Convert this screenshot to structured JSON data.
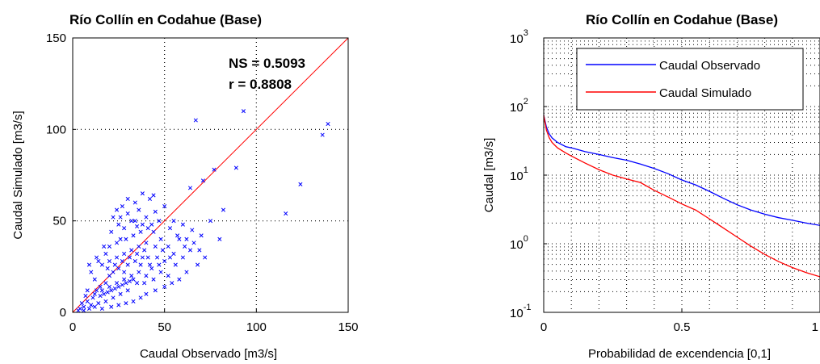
{
  "chart_data": [
    {
      "type": "scatter",
      "title": "Río Collín en Codahue (Base)",
      "xlabel": "Caudal Observado [m3/s]",
      "ylabel": "Caudal Simulado [m3/s]",
      "xlim": [
        0,
        150
      ],
      "ylim": [
        0,
        150
      ],
      "xticks": [
        "0",
        "50",
        "100",
        "150"
      ],
      "yticks": [
        "0",
        "50",
        "100",
        "150"
      ],
      "grid": true,
      "marker_color": "#0000ff",
      "line_color": "#ff0000",
      "identity_line": [
        [
          0,
          0
        ],
        [
          150,
          150
        ]
      ],
      "annotations": [
        "NS = 0.5093",
        "r = 0.8808"
      ],
      "points": [
        [
          67,
          105
        ],
        [
          93,
          110
        ],
        [
          139,
          103
        ],
        [
          136,
          97
        ],
        [
          77,
          78
        ],
        [
          89,
          79
        ],
        [
          71,
          72
        ],
        [
          124,
          70
        ],
        [
          64,
          68
        ],
        [
          116,
          54
        ],
        [
          44,
          64
        ],
        [
          42,
          62
        ],
        [
          38,
          65
        ],
        [
          34,
          60
        ],
        [
          36,
          56
        ],
        [
          30,
          62
        ],
        [
          27,
          58
        ],
        [
          24,
          56
        ],
        [
          22,
          52
        ],
        [
          25,
          48
        ],
        [
          28,
          46
        ],
        [
          32,
          50
        ],
        [
          35,
          47
        ],
        [
          40,
          52
        ],
        [
          45,
          55
        ],
        [
          50,
          58
        ],
        [
          55,
          50
        ],
        [
          60,
          48
        ],
        [
          65,
          45
        ],
        [
          70,
          42
        ],
        [
          75,
          50
        ],
        [
          82,
          56
        ],
        [
          80,
          40
        ],
        [
          66,
          38
        ],
        [
          58,
          40
        ],
        [
          52,
          36
        ],
        [
          48,
          40
        ],
        [
          44,
          44
        ],
        [
          40,
          38
        ],
        [
          36,
          36
        ],
        [
          32,
          34
        ],
        [
          28,
          32
        ],
        [
          24,
          30
        ],
        [
          20,
          28
        ],
        [
          18,
          32
        ],
        [
          16,
          26
        ],
        [
          14,
          28
        ],
        [
          10,
          22
        ],
        [
          12,
          18
        ],
        [
          15,
          14
        ],
        [
          18,
          16
        ],
        [
          20,
          20
        ],
        [
          22,
          22
        ],
        [
          25,
          24
        ],
        [
          28,
          22
        ],
        [
          30,
          26
        ],
        [
          34,
          28
        ],
        [
          38,
          30
        ],
        [
          42,
          26
        ],
        [
          46,
          30
        ],
        [
          50,
          28
        ],
        [
          55,
          32
        ],
        [
          60,
          30
        ],
        [
          35,
          16
        ],
        [
          30,
          12
        ],
        [
          26,
          10
        ],
        [
          22,
          8
        ],
        [
          18,
          6
        ],
        [
          14,
          5
        ],
        [
          10,
          4
        ],
        [
          6,
          3
        ],
        [
          4,
          2
        ],
        [
          3,
          1
        ],
        [
          8,
          6
        ],
        [
          12,
          10
        ],
        [
          16,
          12
        ],
        [
          20,
          14
        ],
        [
          24,
          16
        ],
        [
          28,
          18
        ],
        [
          32,
          20
        ],
        [
          36,
          22
        ],
        [
          40,
          20
        ],
        [
          44,
          18
        ],
        [
          48,
          22
        ],
        [
          52,
          20
        ],
        [
          45,
          12
        ],
        [
          40,
          10
        ],
        [
          58,
          18
        ],
        [
          62,
          22
        ],
        [
          68,
          26
        ],
        [
          72,
          30
        ],
        [
          64,
          34
        ],
        [
          26,
          40
        ],
        [
          21,
          44
        ],
        [
          17,
          36
        ],
        [
          13,
          30
        ],
        [
          9,
          26
        ],
        [
          8,
          12
        ],
        [
          7,
          9
        ],
        [
          5,
          5
        ],
        [
          11,
          8
        ],
        [
          13,
          12
        ],
        [
          15,
          9
        ],
        [
          17,
          10
        ],
        [
          19,
          11
        ],
        [
          21,
          12
        ],
        [
          23,
          13
        ],
        [
          25,
          14
        ],
        [
          27,
          15
        ],
        [
          29,
          16
        ],
        [
          31,
          17
        ],
        [
          33,
          18
        ],
        [
          19,
          24
        ],
        [
          23,
          26
        ],
        [
          27,
          28
        ],
        [
          31,
          30
        ],
        [
          35,
          32
        ],
        [
          39,
          34
        ],
        [
          20,
          36
        ],
        [
          24,
          38
        ],
        [
          29,
          40
        ],
        [
          33,
          42
        ],
        [
          37,
          44
        ],
        [
          41,
          46
        ],
        [
          26,
          52
        ],
        [
          30,
          54
        ],
        [
          34,
          50
        ],
        [
          38,
          48
        ],
        [
          43,
          48
        ],
        [
          47,
          50
        ],
        [
          53,
          46
        ],
        [
          57,
          42
        ],
        [
          62,
          40
        ],
        [
          56,
          26
        ],
        [
          50,
          14
        ],
        [
          54,
          16
        ],
        [
          37,
          8
        ],
        [
          33,
          6
        ],
        [
          29,
          5
        ],
        [
          25,
          4
        ],
        [
          21,
          3
        ],
        [
          16,
          2
        ],
        [
          12,
          3
        ],
        [
          9,
          2
        ],
        [
          6,
          1
        ],
        [
          45,
          36
        ],
        [
          49,
          34
        ],
        [
          53,
          30
        ],
        [
          41,
          30
        ],
        [
          37,
          26
        ],
        [
          43,
          24
        ],
        [
          39,
          16
        ],
        [
          47,
          26
        ],
        [
          61,
          36
        ],
        [
          69,
          34
        ]
      ]
    },
    {
      "type": "line",
      "title": "Río Collín en Codahue (Base)",
      "xlabel": "Probabilidad de excendencia [0,1]",
      "ylabel": "Caudal [m3/s]",
      "xlim": [
        0,
        1
      ],
      "ylim": [
        0.1,
        1000
      ],
      "yscale": "log",
      "xticks": [
        "0",
        "0.5",
        "1"
      ],
      "yticks": [
        {
          "base": "10",
          "exp": "-1"
        },
        {
          "base": "10",
          "exp": "0"
        },
        {
          "base": "10",
          "exp": "1"
        },
        {
          "base": "10",
          "exp": "2"
        },
        {
          "base": "10",
          "exp": "3"
        }
      ],
      "grid": true,
      "legend_position": "top-right",
      "series": [
        {
          "name": "Caudal Observado",
          "color": "#0000ff",
          "x": [
            0,
            0.01,
            0.02,
            0.03,
            0.05,
            0.08,
            0.1,
            0.15,
            0.2,
            0.25,
            0.3,
            0.35,
            0.4,
            0.45,
            0.5,
            0.55,
            0.6,
            0.65,
            0.7,
            0.75,
            0.8,
            0.85,
            0.9,
            0.95,
            1.0
          ],
          "y": [
            75,
            50,
            40,
            35,
            30,
            26,
            25,
            22,
            20,
            18,
            16.5,
            14.5,
            12.5,
            10.5,
            8.5,
            7.2,
            5.8,
            4.6,
            3.7,
            3.1,
            2.7,
            2.4,
            2.2,
            2.0,
            1.85
          ]
        },
        {
          "name": "Caudal Simulado",
          "color": "#ff0000",
          "x": [
            0,
            0.01,
            0.02,
            0.03,
            0.05,
            0.08,
            0.1,
            0.15,
            0.2,
            0.25,
            0.3,
            0.35,
            0.4,
            0.45,
            0.5,
            0.55,
            0.6,
            0.65,
            0.7,
            0.75,
            0.8,
            0.85,
            0.9,
            0.95,
            1.0
          ],
          "y": [
            75,
            45,
            35,
            30,
            25,
            21,
            19,
            15,
            12,
            10,
            8.8,
            7.8,
            6.0,
            4.8,
            3.8,
            3.1,
            2.3,
            1.7,
            1.25,
            0.92,
            0.7,
            0.55,
            0.45,
            0.38,
            0.33
          ]
        }
      ]
    }
  ]
}
